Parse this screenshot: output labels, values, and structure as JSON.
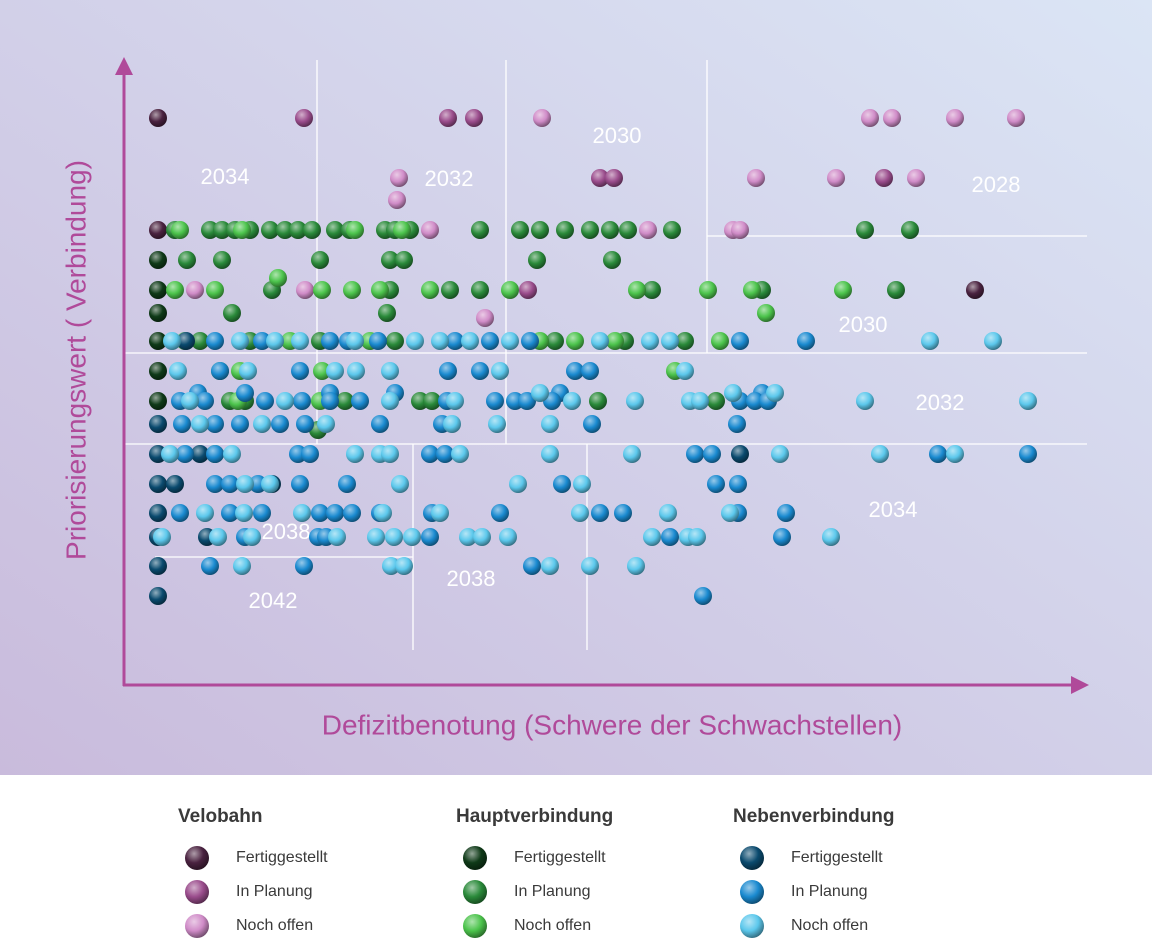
{
  "chart_data": {
    "type": "scatter",
    "y_label": "Priorisierungswert ( Verbindung)",
    "x_label": "Defizitbenotung (Schwere der Schwachstellen)",
    "xlim": [
      0,
      961
    ],
    "ylim": [
      0,
      625
    ],
    "annotations": [
      "2034",
      "2032",
      "2030",
      "2028",
      "2030",
      "2032",
      "2034",
      "2038",
      "2038",
      "2042"
    ],
    "groups": [
      {
        "name": "Velobahn",
        "series": [
          {
            "name": "Fertiggestellt",
            "color": "#4a2240",
            "x": [
              34,
              34,
              851
            ],
            "y": [
              567,
              455,
              395
            ]
          },
          {
            "name": "In Planung",
            "color": "#9a4c8c",
            "x": [
              180,
              324,
              350,
              476,
              490,
              760,
              404
            ],
            "y": [
              567,
              567,
              567,
              507,
              507,
              507,
              395
            ]
          },
          {
            "name": "Noch offen",
            "color": "#d08cc8",
            "x": [
              418,
              746,
              768,
              831,
              892,
              275,
              632,
              712,
              792,
              273,
              306,
              609,
              616,
              524,
              71,
              181,
              361
            ],
            "y": [
              567,
              567,
              567,
              567,
              567,
              507,
              507,
              507,
              507,
              485,
              455,
              455,
              455,
              455,
              395,
              395,
              367
            ]
          }
        ]
      },
      {
        "name": "Hauptverbindung",
        "series": [
          {
            "name": "Fertiggestellt",
            "color": "#0f3a18",
            "x": [
              34,
              34,
              34,
              34,
              34,
              34
            ],
            "y": [
              425,
              395,
              372,
              344,
              314,
              284
            ]
          },
          {
            "name": "In Planung",
            "color": "#2a8a3a",
            "x": [
              51,
              86,
              98,
              111,
              126,
              146,
              161,
              174,
              188,
              211,
              226,
              261,
              271,
              286,
              356,
              396,
              416,
              441,
              466,
              486,
              504,
              548,
              741,
              786,
              63,
              98,
              196,
              266,
              280,
              413,
              488,
              148,
              326,
              356,
              266,
              528,
              772,
              638,
              108,
              263,
              76,
              126,
              196,
              271,
              431,
              501,
              561,
              106,
              121,
              221,
              296,
              308,
              474,
              592,
              194
            ],
            "y": [
              455,
              455,
              455,
              455,
              455,
              455,
              455,
              455,
              455,
              455,
              455,
              455,
              455,
              455,
              455,
              455,
              455,
              455,
              455,
              455,
              455,
              455,
              455,
              455,
              425,
              425,
              425,
              425,
              425,
              425,
              425,
              395,
              395,
              395,
              395,
              395,
              395,
              395,
              372,
              372,
              344,
              344,
              344,
              344,
              344,
              344,
              344,
              284,
              284,
              284,
              284,
              284,
              284,
              284,
              255
            ]
          },
          {
            "name": "Noch offen",
            "color": "#4cc44c",
            "x": [
              56,
              118,
              231,
              278,
              51,
              91,
              198,
              228,
              256,
              306,
              386,
              513,
              584,
              628,
              719,
              154,
              642,
              61,
              166,
              246,
              416,
              451,
              491,
              596,
              96,
              116,
              198,
              551,
              196,
              114,
              91
            ],
            "y": [
              455,
              455,
              455,
              455,
              395,
              395,
              395,
              395,
              395,
              395,
              395,
              395,
              395,
              395,
              395,
              407,
              372,
              344,
              344,
              344,
              344,
              344,
              344,
              344,
              314,
              314,
              314,
              314,
              284,
              284,
              231
            ]
          }
        ]
      },
      {
        "name": "Nebenverbindung",
        "series": [
          {
            "name": "Fertiggestellt",
            "color": "#0a4a6e",
            "x": [
              62,
              34,
              34,
              76,
              616,
              34,
              51,
              148,
              34,
              34,
              83,
              34,
              34
            ],
            "y": [
              344,
              261,
              231,
              231,
              231,
              201,
              201,
              201,
              172,
              148,
              148,
              119,
              89
            ]
          },
          {
            "name": "In Planung",
            "color": "#1a8ad0",
            "x": [
              91,
              138,
              206,
              224,
              254,
              331,
              366,
              406,
              616,
              682,
              96,
              176,
              324,
              356,
              451,
              466,
              74,
              121,
              206,
              271,
              436,
              638,
              56,
              81,
              141,
              178,
              206,
              236,
              323,
              371,
              391,
              403,
              428,
              616,
              631,
              644,
              58,
              91,
              116,
              156,
              181,
              256,
              318,
              468,
              613,
              61,
              91,
              174,
              186,
              306,
              321,
              571,
              588,
              814,
              904,
              91,
              106,
              134,
              176,
              223,
              438,
              592,
              614,
              56,
              106,
              138,
              196,
              211,
              228,
              256,
              308,
              376,
              476,
              499,
              614,
              662,
              121,
              194,
              202,
              306,
              658,
              546,
              86,
              180,
              408,
              579
            ],
            "y": [
              344,
              344,
              344,
              344,
              344,
              344,
              344,
              344,
              344,
              344,
              314,
              314,
              314,
              314,
              314,
              314,
              292,
              292,
              292,
              292,
              292,
              292,
              284,
              284,
              284,
              284,
              284,
              284,
              284,
              284,
              284,
              284,
              284,
              284,
              284,
              284,
              261,
              261,
              261,
              261,
              261,
              261,
              261,
              261,
              261,
              231,
              231,
              231,
              231,
              231,
              231,
              231,
              231,
              231,
              231,
              201,
              201,
              201,
              201,
              201,
              201,
              201,
              201,
              172,
              172,
              172,
              172,
              172,
              172,
              172,
              172,
              172,
              172,
              172,
              172,
              172,
              148,
              148,
              148,
              148,
              148,
              148,
              119,
              119,
              119,
              89
            ]
          },
          {
            "name": "Noch offen",
            "color": "#5cc8ec",
            "x": [
              48,
              116,
              151,
              176,
              231,
              291,
              316,
              346,
              386,
              476,
              526,
              546,
              806,
              869,
              54,
              124,
              211,
              232,
              266,
              376,
              561,
              416,
              609,
              651,
              66,
              161,
              266,
              331,
              448,
              511,
              566,
              576,
              741,
              904,
              76,
              138,
              202,
              328,
              373,
              426,
              46,
              108,
              231,
              256,
              266,
              336,
              426,
              508,
              656,
              756,
              831,
              121,
              146,
              276,
              394,
              458,
              81,
              120,
              178,
              259,
              316,
              456,
              544,
              606,
              38,
              94,
              128,
              213,
              252,
              270,
              288,
              344,
              358,
              384,
              528,
              564,
              573,
              707,
              118,
              267,
              280,
              426,
              466,
              512
            ],
            "y": [
              344,
              344,
              344,
              344,
              344,
              344,
              344,
              344,
              344,
              344,
              344,
              344,
              344,
              344,
              314,
              314,
              314,
              314,
              314,
              314,
              314,
              292,
              292,
              292,
              284,
              284,
              284,
              284,
              284,
              284,
              284,
              284,
              284,
              284,
              261,
              261,
              261,
              261,
              261,
              261,
              231,
              231,
              231,
              231,
              231,
              231,
              231,
              231,
              231,
              231,
              231,
              201,
              201,
              201,
              201,
              201,
              172,
              172,
              172,
              172,
              172,
              172,
              172,
              172,
              148,
              148,
              148,
              148,
              148,
              148,
              148,
              148,
              148,
              148,
              148,
              148,
              148,
              148,
              119,
              119,
              119,
              119,
              119,
              119
            ]
          }
        ]
      }
    ]
  }
}
